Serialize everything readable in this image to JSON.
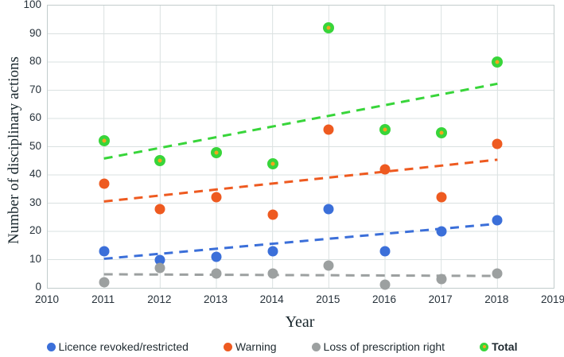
{
  "chart_data": {
    "type": "scatter",
    "title": "",
    "xlabel": "Year",
    "ylabel": "Number of disciplinary actions",
    "xlim": [
      2010,
      2019
    ],
    "ylim": [
      0,
      100
    ],
    "x_ticks": [
      2010,
      2011,
      2012,
      2013,
      2014,
      2015,
      2016,
      2017,
      2018,
      2019
    ],
    "y_ticks": [
      0,
      10,
      20,
      30,
      40,
      50,
      60,
      70,
      80,
      90,
      100
    ],
    "grid": true,
    "legend_position": "bottom",
    "x": [
      2011,
      2012,
      2013,
      2014,
      2015,
      2016,
      2017,
      2018
    ],
    "series": [
      {
        "name": "Licence revoked/restricted",
        "color": "#3b6fd9",
        "values": [
          13,
          10,
          11,
          13,
          28,
          13,
          20,
          24
        ],
        "trend": {
          "x1": 2011,
          "y1": 10.3,
          "x2": 2018,
          "y2": 22.7
        },
        "bold_legend": false
      },
      {
        "name": "Warning",
        "color": "#ee5a20",
        "values": [
          37,
          28,
          32,
          26,
          56,
          42,
          32,
          51
        ],
        "trend": {
          "x1": 2011,
          "y1": 30.6,
          "x2": 2018,
          "y2": 45.4
        },
        "bold_legend": false
      },
      {
        "name": "Loss of prescription right",
        "color": "#9ca0a0",
        "values": [
          2,
          7,
          5,
          5,
          8,
          1,
          3,
          5
        ],
        "trend": {
          "x1": 2011,
          "y1": 4.8,
          "x2": 2018,
          "y2": 4.2
        },
        "bold_legend": false
      },
      {
        "name": "Total",
        "color": "#38d53a",
        "marker_center": "#f2a51c",
        "values": [
          52,
          45,
          48,
          44,
          92,
          56,
          55,
          80
        ],
        "trend": {
          "x1": 2011,
          "y1": 45.8,
          "x2": 2018,
          "y2": 72.3
        },
        "bold_legend": true
      }
    ],
    "style": {
      "grid_color": "#dae1e1",
      "dot_size_px": 13,
      "total_dot_size_px": 14,
      "trend_dash": "11,8",
      "trend_width": 3
    }
  }
}
